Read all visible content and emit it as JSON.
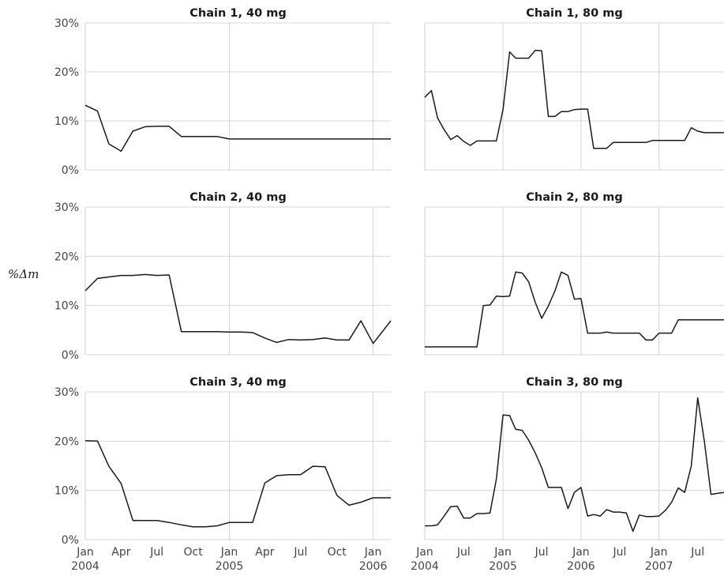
{
  "y_label": "%Δm",
  "chart_data": [
    {
      "type": "line",
      "title": "Chain 1, 40 mg",
      "ylim": [
        0,
        30
      ],
      "yticks": [
        "0%",
        "10%",
        "20%",
        "30%"
      ],
      "xlim": [
        "2004-01-01",
        "2006-02-15"
      ],
      "xticks": [
        "Jan\n2004",
        "Apr",
        "Jul",
        "Oct",
        "Jan\n2005",
        "Apr",
        "Jul",
        "Oct",
        "Jan\n2006"
      ],
      "grid": true,
      "x": [
        "2004-01-01",
        "2004-02-01",
        "2004-03-01",
        "2004-04-01",
        "2004-05-01",
        "2004-06-01",
        "2004-07-01",
        "2004-08-01",
        "2004-09-01",
        "2004-10-01",
        "2004-11-01",
        "2004-12-01",
        "2005-01-01",
        "2005-04-01",
        "2005-07-01",
        "2005-10-01",
        "2006-01-01",
        "2006-02-15"
      ],
      "y": [
        13.2,
        12.0,
        5.3,
        3.8,
        7.9,
        8.8,
        8.9,
        8.9,
        6.8,
        6.8,
        6.8,
        6.8,
        6.3,
        6.3,
        6.3,
        6.3,
        6.3,
        6.3
      ]
    },
    {
      "type": "line",
      "title": "Chain 1, 80 mg",
      "ylim": [
        0,
        30
      ],
      "yticks": [
        "0%",
        "10%",
        "20%",
        "30%"
      ],
      "xlim": [
        "2004-01-01",
        "2007-11-01"
      ],
      "xticks": [
        "Jan\n2004",
        "Jul",
        "Jan\n2005",
        "Jul",
        "Jan\n2006",
        "Jul",
        "Jan\n2007",
        "Jul"
      ],
      "grid": true,
      "x": [
        "2004-01-01",
        "2004-02-01",
        "2004-03-01",
        "2004-04-01",
        "2004-05-01",
        "2004-06-01",
        "2004-07-01",
        "2004-08-01",
        "2004-09-01",
        "2004-10-01",
        "2004-11-01",
        "2004-12-01",
        "2005-01-01",
        "2005-02-01",
        "2005-03-01",
        "2005-04-01",
        "2005-05-01",
        "2005-06-01",
        "2005-07-01",
        "2005-08-01",
        "2005-09-01",
        "2005-10-01",
        "2005-11-01",
        "2005-12-01",
        "2006-01-01",
        "2006-02-01",
        "2006-03-01",
        "2006-04-01",
        "2006-05-01",
        "2006-06-01",
        "2006-07-01",
        "2006-08-01",
        "2006-09-01",
        "2006-10-01",
        "2006-11-01",
        "2006-12-01",
        "2007-01-01",
        "2007-02-01",
        "2007-03-01",
        "2007-04-01",
        "2007-05-01",
        "2007-06-01",
        "2007-07-01",
        "2007-08-01",
        "2007-09-01",
        "2007-10-01",
        "2007-11-01"
      ],
      "y": [
        14.8,
        16.2,
        10.6,
        8.2,
        6.2,
        7.0,
        5.8,
        5.0,
        5.9,
        5.9,
        5.9,
        5.9,
        12.3,
        24.1,
        22.8,
        22.8,
        22.8,
        24.4,
        24.3,
        10.9,
        10.9,
        11.9,
        11.9,
        12.3,
        12.4,
        12.4,
        4.4,
        4.4,
        4.4,
        5.6,
        5.6,
        5.6,
        5.6,
        5.6,
        5.6,
        6.0,
        6.0,
        6.0,
        6.0,
        6.0,
        6.0,
        8.6,
        7.9,
        7.6,
        7.6,
        7.6,
        7.6
      ]
    },
    {
      "type": "line",
      "title": "Chain 2, 40 mg",
      "ylim": [
        0,
        30
      ],
      "yticks": [
        "0%",
        "10%",
        "20%",
        "30%"
      ],
      "xlim": [
        "2004-01-01",
        "2006-02-15"
      ],
      "xticks": [
        "Jan\n2004",
        "Apr",
        "Jul",
        "Oct",
        "Jan\n2005",
        "Apr",
        "Jul",
        "Oct",
        "Jan\n2006"
      ],
      "grid": true,
      "x": [
        "2004-01-01",
        "2004-02-01",
        "2004-03-01",
        "2004-04-01",
        "2004-05-01",
        "2004-06-01",
        "2004-07-01",
        "2004-08-01",
        "2004-09-01",
        "2004-10-01",
        "2004-11-01",
        "2004-12-01",
        "2005-01-01",
        "2005-02-01",
        "2005-03-01",
        "2005-04-01",
        "2005-05-01",
        "2005-06-01",
        "2005-07-01",
        "2005-08-01",
        "2005-09-01",
        "2005-10-01",
        "2005-11-01",
        "2005-12-01",
        "2006-01-01",
        "2006-02-15"
      ],
      "y": [
        13.0,
        15.5,
        15.8,
        16.1,
        16.1,
        16.3,
        16.1,
        16.2,
        4.7,
        4.7,
        4.7,
        4.7,
        4.6,
        4.6,
        4.5,
        3.4,
        2.5,
        3.1,
        3.0,
        3.1,
        3.4,
        3.0,
        3.0,
        6.9,
        2.3,
        6.9
      ]
    },
    {
      "type": "line",
      "title": "Chain 2, 80 mg",
      "ylim": [
        0,
        30
      ],
      "yticks": [
        "0%",
        "10%",
        "20%",
        "30%"
      ],
      "xlim": [
        "2004-01-01",
        "2007-11-01"
      ],
      "xticks": [
        "Jan\n2004",
        "Jul",
        "Jan\n2005",
        "Jul",
        "Jan\n2006",
        "Jul",
        "Jan\n2007",
        "Jul"
      ],
      "grid": true,
      "x": [
        "2004-01-01",
        "2004-02-01",
        "2004-03-01",
        "2004-04-01",
        "2004-05-01",
        "2004-06-01",
        "2004-07-01",
        "2004-08-01",
        "2004-09-01",
        "2004-10-01",
        "2004-11-01",
        "2004-12-01",
        "2005-01-01",
        "2005-02-01",
        "2005-03-01",
        "2005-04-01",
        "2005-05-01",
        "2005-06-01",
        "2005-07-01",
        "2005-08-01",
        "2005-09-01",
        "2005-10-01",
        "2005-11-01",
        "2005-12-01",
        "2006-01-01",
        "2006-02-01",
        "2006-03-01",
        "2006-04-01",
        "2006-05-01",
        "2006-06-01",
        "2006-07-01",
        "2006-08-01",
        "2006-09-01",
        "2006-10-01",
        "2006-11-01",
        "2006-12-01",
        "2007-01-01",
        "2007-02-01",
        "2007-03-01",
        "2007-04-01",
        "2007-05-01",
        "2007-06-01",
        "2007-07-01",
        "2007-08-01",
        "2007-09-01",
        "2007-10-01",
        "2007-11-01"
      ],
      "y": [
        1.6,
        1.6,
        1.6,
        1.6,
        1.6,
        1.6,
        1.6,
        1.6,
        1.6,
        10.0,
        10.1,
        11.9,
        11.8,
        11.9,
        16.8,
        16.6,
        14.8,
        10.6,
        7.4,
        9.9,
        13.0,
        16.8,
        16.1,
        11.3,
        11.4,
        4.4,
        4.4,
        4.4,
        4.6,
        4.4,
        4.4,
        4.4,
        4.4,
        4.4,
        3.0,
        3.0,
        4.4,
        4.4,
        4.4,
        7.1,
        7.1,
        7.1,
        7.1,
        7.1,
        7.1,
        7.1,
        7.1
      ]
    },
    {
      "type": "line",
      "title": "Chain 3, 40 mg",
      "ylim": [
        0,
        30
      ],
      "yticks": [
        "0%",
        "10%",
        "20%",
        "30%"
      ],
      "xlim": [
        "2004-01-01",
        "2006-02-15"
      ],
      "xticks": [
        "Jan\n2004",
        "Apr",
        "Jul",
        "Oct",
        "Jan\n2005",
        "Apr",
        "Jul",
        "Oct",
        "Jan\n2006"
      ],
      "grid": true,
      "x": [
        "2004-01-01",
        "2004-02-01",
        "2004-03-01",
        "2004-04-01",
        "2004-05-01",
        "2004-06-01",
        "2004-07-01",
        "2004-08-01",
        "2004-09-01",
        "2004-10-01",
        "2004-11-01",
        "2004-12-01",
        "2005-01-01",
        "2005-02-01",
        "2005-03-01",
        "2005-04-01",
        "2005-05-01",
        "2005-06-01",
        "2005-07-01",
        "2005-08-01",
        "2005-09-01",
        "2005-10-01",
        "2005-11-01",
        "2005-12-01",
        "2006-01-01",
        "2006-02-15"
      ],
      "y": [
        20.1,
        20.0,
        14.9,
        11.4,
        3.9,
        3.9,
        3.9,
        3.5,
        3.0,
        2.6,
        2.6,
        2.8,
        3.5,
        3.5,
        3.5,
        11.5,
        13.0,
        13.2,
        13.2,
        14.9,
        14.8,
        9.0,
        7.0,
        7.6,
        8.5,
        8.5
      ]
    },
    {
      "type": "line",
      "title": "Chain 3, 80 mg",
      "ylim": [
        0,
        30
      ],
      "yticks": [
        "0%",
        "10%",
        "20%",
        "30%"
      ],
      "xlim": [
        "2004-01-01",
        "2007-11-01"
      ],
      "xticks": [
        "Jan\n2004",
        "Jul",
        "Jan\n2005",
        "Jul",
        "Jan\n2006",
        "Jul",
        "Jan\n2007",
        "Jul"
      ],
      "grid": true,
      "x": [
        "2004-01-01",
        "2004-02-01",
        "2004-03-01",
        "2004-04-01",
        "2004-05-01",
        "2004-06-01",
        "2004-07-01",
        "2004-08-01",
        "2004-09-01",
        "2004-10-01",
        "2004-11-01",
        "2004-12-01",
        "2005-01-01",
        "2005-02-01",
        "2005-03-01",
        "2005-04-01",
        "2005-05-01",
        "2005-06-01",
        "2005-07-01",
        "2005-08-01",
        "2005-09-01",
        "2005-10-01",
        "2005-11-01",
        "2005-12-01",
        "2006-01-01",
        "2006-02-01",
        "2006-03-01",
        "2006-04-01",
        "2006-05-01",
        "2006-06-01",
        "2006-07-01",
        "2006-08-01",
        "2006-09-01",
        "2006-10-01",
        "2006-11-01",
        "2006-12-01",
        "2007-01-01",
        "2007-02-01",
        "2007-03-01",
        "2007-04-01",
        "2007-05-01",
        "2007-06-01",
        "2007-07-01",
        "2007-08-01",
        "2007-09-01",
        "2007-10-01",
        "2007-11-01"
      ],
      "y": [
        2.8,
        2.8,
        3.0,
        4.8,
        6.7,
        6.8,
        4.4,
        4.4,
        5.3,
        5.3,
        5.4,
        12.3,
        25.3,
        25.2,
        22.4,
        22.2,
        20.2,
        17.6,
        14.6,
        10.6,
        10.6,
        10.6,
        6.3,
        9.6,
        10.6,
        4.8,
        5.1,
        4.8,
        6.1,
        5.6,
        5.6,
        5.4,
        1.7,
        5.0,
        4.7,
        4.7,
        4.8,
        6.0,
        7.6,
        10.5,
        9.6,
        15.0,
        28.8,
        20.0,
        9.2,
        9.4,
        9.6
      ]
    }
  ]
}
